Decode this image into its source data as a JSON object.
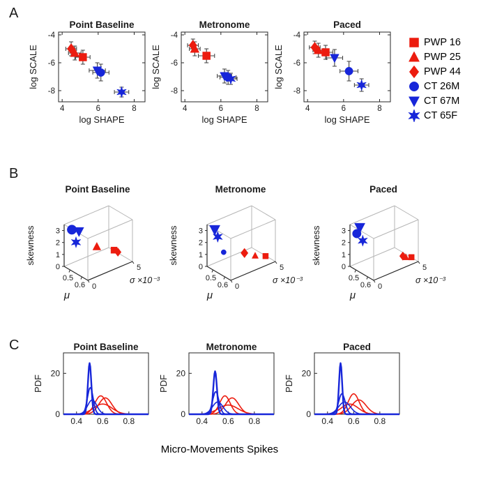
{
  "figure": {
    "bottom_xlabel": "Micro-Movements Spikes",
    "palette": {
      "red": "#ec1c0f",
      "blue": "#1726d9",
      "errorbar": "#3d3d3d",
      "axis": "#262626",
      "boxlight": "#b5b5b5"
    }
  },
  "sections": [
    {
      "label": "A"
    },
    {
      "label": "B"
    },
    {
      "label": "C"
    }
  ],
  "legend": {
    "position": "right",
    "items": [
      {
        "label": "PWP 16",
        "marker": "square",
        "color": "red"
      },
      {
        "label": "PWP 25",
        "marker": "triangle",
        "color": "red"
      },
      {
        "label": "PWP 44",
        "marker": "diamond",
        "color": "red"
      },
      {
        "label": "CT 26M",
        "marker": "circle",
        "color": "blue"
      },
      {
        "label": "CT 67M",
        "marker": "triangle-down",
        "color": "blue"
      },
      {
        "label": "CT 65F",
        "marker": "star",
        "color": "blue"
      }
    ]
  },
  "chart_data": [
    {
      "id": "A1",
      "type": "scatter",
      "title": "Point Baseline",
      "xlabel": "log SHAPE",
      "ylabel": "log SCALE",
      "xlim": [
        3.8,
        8.6
      ],
      "ylim": [
        -8.8,
        -3.8
      ],
      "xticks": [
        4,
        6,
        8
      ],
      "yticks": [
        -8,
        -6,
        -4
      ],
      "points": [
        {
          "series": "PWP 44",
          "marker": "diamond",
          "color": "red",
          "x": 4.5,
          "y": -5.0,
          "xerr": 0.3,
          "yerr": 0.5
        },
        {
          "series": "PWP 25",
          "marker": "triangle",
          "color": "red",
          "x": 4.7,
          "y": -5.3,
          "xerr": 0.35,
          "yerr": 0.5
        },
        {
          "series": "PWP 16",
          "marker": "square",
          "color": "red",
          "x": 5.15,
          "y": -5.6,
          "xerr": 0.4,
          "yerr": 0.5
        },
        {
          "series": "CT 67M",
          "marker": "triangle-down",
          "color": "blue",
          "x": 5.95,
          "y": -6.55,
          "xerr": 0.45,
          "yerr": 0.55
        },
        {
          "series": "CT 26M",
          "marker": "circle",
          "color": "blue",
          "x": 6.15,
          "y": -6.7,
          "xerr": 0.45,
          "yerr": 0.6
        },
        {
          "series": "CT 65F",
          "marker": "star",
          "color": "blue",
          "x": 7.3,
          "y": -8.1,
          "xerr": 0.4,
          "yerr": 0.35
        }
      ]
    },
    {
      "id": "A2",
      "type": "scatter",
      "title": "Metronome",
      "xlabel": "log SHAPE",
      "ylabel": "log SCALE",
      "xlim": [
        3.8,
        8.6
      ],
      "ylim": [
        -8.8,
        -3.8
      ],
      "xticks": [
        4,
        6,
        8
      ],
      "yticks": [
        -8,
        -6,
        -4
      ],
      "points": [
        {
          "series": "PWP 44",
          "marker": "diamond",
          "color": "red",
          "x": 4.45,
          "y": -4.75,
          "xerr": 0.3,
          "yerr": 0.45
        },
        {
          "series": "PWP 25",
          "marker": "triangle",
          "color": "red",
          "x": 4.55,
          "y": -5.0,
          "xerr": 0.3,
          "yerr": 0.5
        },
        {
          "series": "PWP 16",
          "marker": "square",
          "color": "red",
          "x": 5.2,
          "y": -5.5,
          "xerr": 0.45,
          "yerr": 0.5
        },
        {
          "series": "CT 67M",
          "marker": "triangle-down",
          "color": "blue",
          "x": 6.2,
          "y": -6.95,
          "xerr": 0.4,
          "yerr": 0.5
        },
        {
          "series": "CT 26M",
          "marker": "circle",
          "color": "blue",
          "x": 6.4,
          "y": -7.05,
          "xerr": 0.45,
          "yerr": 0.5
        },
        {
          "series": "CT 65F",
          "marker": "star",
          "color": "blue",
          "x": 6.55,
          "y": -7.15,
          "xerr": 0.35,
          "yerr": 0.4
        }
      ]
    },
    {
      "id": "A3",
      "type": "scatter",
      "title": "Paced",
      "xlabel": "log SHAPE",
      "ylabel": "log SCALE",
      "xlim": [
        3.8,
        8.6
      ],
      "ylim": [
        -8.8,
        -3.8
      ],
      "xticks": [
        4,
        6,
        8
      ],
      "yticks": [
        -8,
        -6,
        -4
      ],
      "points": [
        {
          "series": "PWP 44",
          "marker": "diamond",
          "color": "red",
          "x": 4.4,
          "y": -4.9,
          "xerr": 0.3,
          "yerr": 0.45
        },
        {
          "series": "PWP 25",
          "marker": "triangle",
          "color": "red",
          "x": 4.6,
          "y": -5.1,
          "xerr": 0.3,
          "yerr": 0.5
        },
        {
          "series": "PWP 16",
          "marker": "square",
          "color": "red",
          "x": 5.0,
          "y": -5.25,
          "xerr": 0.4,
          "yerr": 0.5
        },
        {
          "series": "CT 67M",
          "marker": "triangle-down",
          "color": "blue",
          "x": 5.5,
          "y": -5.65,
          "xerr": 0.45,
          "yerr": 0.6
        },
        {
          "series": "CT 26M",
          "marker": "circle",
          "color": "blue",
          "x": 6.3,
          "y": -6.6,
          "xerr": 0.5,
          "yerr": 0.7
        },
        {
          "series": "CT 65F",
          "marker": "star",
          "color": "blue",
          "x": 7.0,
          "y": -7.6,
          "xerr": 0.4,
          "yerr": 0.45
        }
      ]
    },
    {
      "id": "B1",
      "type": "scatter3d",
      "title": "Point Baseline",
      "xlabel": "μ",
      "ylabel": "σ ×10⁻³",
      "zlabel": "skewness",
      "xlim": [
        0.45,
        0.65
      ],
      "ylim": [
        0,
        5
      ],
      "zlim": [
        0,
        3.5
      ],
      "xticks": [
        0.5,
        0.6
      ],
      "yticks": [
        0,
        5
      ],
      "zticks": [
        0,
        1,
        2,
        3
      ],
      "points": [
        {
          "series": "PWP 25",
          "marker": "triangle",
          "color": "red",
          "mu": 0.56,
          "sigma": 2.2,
          "skew": 1.6,
          "size": 10
        },
        {
          "series": "PWP 16",
          "marker": "square",
          "color": "red",
          "mu": 0.6,
          "sigma": 3.6,
          "skew": 1.1,
          "size": 9
        },
        {
          "series": "PWP 44",
          "marker": "diamond",
          "color": "red",
          "mu": 0.61,
          "sigma": 3.9,
          "skew": 0.9,
          "size": 9
        },
        {
          "series": "CT 26M",
          "marker": "circle",
          "color": "blue",
          "mu": 0.47,
          "sigma": 0.6,
          "skew": 3.0,
          "size": 13
        },
        {
          "series": "CT 67M",
          "marker": "triangle-down",
          "color": "blue",
          "mu": 0.5,
          "sigma": 1.0,
          "skew": 2.9,
          "size": 12
        },
        {
          "series": "CT 65F",
          "marker": "star",
          "color": "blue",
          "mu": 0.49,
          "sigma": 0.8,
          "skew": 2.0,
          "size": 11
        }
      ]
    },
    {
      "id": "B2",
      "type": "scatter3d",
      "title": "Metronome",
      "xlabel": "μ",
      "ylabel": "σ ×10⁻³",
      "zlabel": "skewness",
      "xlim": [
        0.45,
        0.65
      ],
      "ylim": [
        0,
        5
      ],
      "zlim": [
        0,
        3.5
      ],
      "xticks": [
        0.5,
        0.6
      ],
      "yticks": [
        0,
        5
      ],
      "zticks": [
        0,
        1,
        2,
        3
      ],
      "points": [
        {
          "series": "PWP 44",
          "marker": "diamond",
          "color": "red",
          "mu": 0.57,
          "sigma": 2.6,
          "skew": 1.0,
          "size": 10
        },
        {
          "series": "PWP 25",
          "marker": "triangle",
          "color": "red",
          "mu": 0.6,
          "sigma": 3.4,
          "skew": 0.7,
          "size": 8
        },
        {
          "series": "PWP 16",
          "marker": "square",
          "color": "red",
          "mu": 0.62,
          "sigma": 4.3,
          "skew": 0.5,
          "size": 8
        },
        {
          "series": "CT 67M",
          "marker": "triangle-down",
          "color": "blue",
          "mu": 0.47,
          "sigma": 0.6,
          "skew": 3.0,
          "size": 13
        },
        {
          "series": "CT 65F",
          "marker": "star",
          "color": "blue",
          "mu": 0.48,
          "sigma": 0.8,
          "skew": 2.4,
          "size": 11
        },
        {
          "series": "CT 26M",
          "marker": "circle",
          "color": "blue",
          "mu": 0.5,
          "sigma": 1.2,
          "skew": 1.1,
          "size": 7
        }
      ]
    },
    {
      "id": "B3",
      "type": "scatter3d",
      "title": "Paced",
      "xlabel": "μ",
      "ylabel": "σ ×10⁻³",
      "zlabel": "skewness",
      "xlim": [
        0.45,
        0.65
      ],
      "ylim": [
        0,
        5
      ],
      "zlim": [
        0,
        3.5
      ],
      "xticks": [
        0.5,
        0.6
      ],
      "yticks": [
        0,
        5
      ],
      "zticks": [
        0,
        1,
        2,
        3
      ],
      "points": [
        {
          "series": "PWP 44",
          "marker": "diamond",
          "color": "red",
          "mu": 0.61,
          "sigma": 3.8,
          "skew": 0.6,
          "size": 9
        },
        {
          "series": "PWP 25",
          "marker": "triangle",
          "color": "red",
          "mu": 0.62,
          "sigma": 4.0,
          "skew": 0.5,
          "size": 8
        },
        {
          "series": "PWP 16",
          "marker": "square",
          "color": "red",
          "mu": 0.63,
          "sigma": 4.5,
          "skew": 0.4,
          "size": 8
        },
        {
          "series": "CT 67M",
          "marker": "triangle-down",
          "color": "blue",
          "mu": 0.48,
          "sigma": 0.7,
          "skew": 3.2,
          "size": 13
        },
        {
          "series": "CT 26M",
          "marker": "circle",
          "color": "blue",
          "mu": 0.47,
          "sigma": 0.5,
          "skew": 2.7,
          "size": 12
        },
        {
          "series": "CT 65F",
          "marker": "star",
          "color": "blue",
          "mu": 0.49,
          "sigma": 0.9,
          "skew": 2.1,
          "size": 11
        }
      ]
    },
    {
      "id": "C1",
      "type": "line",
      "title": "Point Baseline",
      "xlabel": "",
      "ylabel": "PDF",
      "xlim": [
        0.3,
        0.95
      ],
      "ylim": [
        0,
        30
      ],
      "xticks": [
        0.4,
        0.6,
        0.8
      ],
      "yticks": [
        0,
        20
      ],
      "curves": [
        {
          "color": "red",
          "mean": 0.585,
          "sd": 0.045,
          "peak": 9,
          "lw": 1.6
        },
        {
          "color": "red",
          "mean": 0.62,
          "sd": 0.05,
          "peak": 8,
          "lw": 1.6
        },
        {
          "color": "red",
          "mean": 0.6,
          "sd": 0.07,
          "peak": 5,
          "lw": 1.6
        },
        {
          "color": "blue",
          "mean": 0.52,
          "sd": 0.035,
          "peak": 7,
          "lw": 1.6
        },
        {
          "color": "blue",
          "mean": 0.505,
          "sd": 0.022,
          "peak": 13,
          "lw": 1.8
        },
        {
          "color": "blue",
          "mean": 0.5,
          "sd": 0.013,
          "peak": 25,
          "lw": 2.4
        }
      ]
    },
    {
      "id": "C2",
      "type": "line",
      "title": "Metronome",
      "xlabel": "",
      "ylabel": "PDF",
      "xlim": [
        0.3,
        0.95
      ],
      "ylim": [
        0,
        30
      ],
      "xticks": [
        0.4,
        0.6,
        0.8
      ],
      "yticks": [
        0,
        20
      ],
      "curves": [
        {
          "color": "red",
          "mean": 0.575,
          "sd": 0.04,
          "peak": 9,
          "lw": 1.6
        },
        {
          "color": "red",
          "mean": 0.63,
          "sd": 0.05,
          "peak": 8,
          "lw": 1.6
        },
        {
          "color": "red",
          "mean": 0.6,
          "sd": 0.075,
          "peak": 4.5,
          "lw": 1.6
        },
        {
          "color": "blue",
          "mean": 0.52,
          "sd": 0.04,
          "peak": 6,
          "lw": 1.6
        },
        {
          "color": "blue",
          "mean": 0.505,
          "sd": 0.024,
          "peak": 11,
          "lw": 1.8
        },
        {
          "color": "blue",
          "mean": 0.5,
          "sd": 0.014,
          "peak": 21,
          "lw": 2.4
        }
      ]
    },
    {
      "id": "C3",
      "type": "line",
      "title": "Paced",
      "xlabel": "",
      "ylabel": "PDF",
      "xlim": [
        0.3,
        0.95
      ],
      "ylim": [
        0,
        30
      ],
      "xticks": [
        0.4,
        0.6,
        0.8
      ],
      "yticks": [
        0,
        20
      ],
      "curves": [
        {
          "color": "red",
          "mean": 0.6,
          "sd": 0.042,
          "peak": 10,
          "lw": 1.6
        },
        {
          "color": "red",
          "mean": 0.64,
          "sd": 0.055,
          "peak": 7,
          "lw": 1.6
        },
        {
          "color": "red",
          "mean": 0.57,
          "sd": 0.065,
          "peak": 5,
          "lw": 1.6
        },
        {
          "color": "blue",
          "mean": 0.53,
          "sd": 0.045,
          "peak": 6,
          "lw": 1.6
        },
        {
          "color": "blue",
          "mean": 0.51,
          "sd": 0.025,
          "peak": 10,
          "lw": 1.8
        },
        {
          "color": "blue",
          "mean": 0.5,
          "sd": 0.012,
          "peak": 25,
          "lw": 2.4
        }
      ]
    }
  ]
}
